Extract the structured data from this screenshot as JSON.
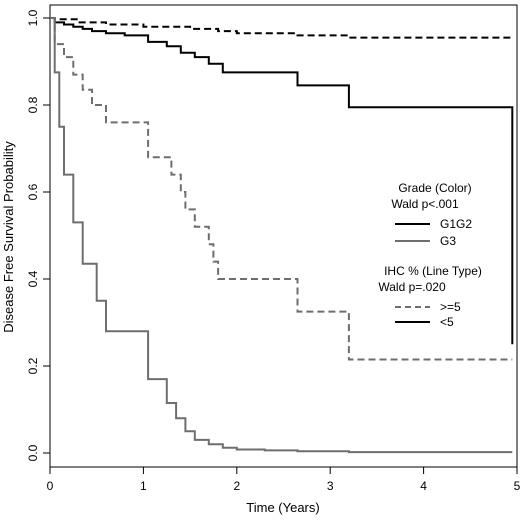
{
  "chart_data": {
    "type": "line",
    "xlabel": "Time (Years)",
    "ylabel": "Disease Free Survival Probability",
    "xlim": [
      0,
      5
    ],
    "ylim": [
      0,
      1
    ],
    "x_ticks": [
      "0",
      "1",
      "2",
      "3",
      "4",
      "5"
    ],
    "y_ticks": [
      "0.0",
      "0.2",
      "0.4",
      "0.6",
      "0.8",
      "1.0"
    ],
    "grid": false,
    "legend_placement": "right",
    "legend": {
      "grade_title": "Grade (Color)",
      "grade_p": "Wald p<.001",
      "grade_items": [
        {
          "label": "G1G2",
          "color": "#000000"
        },
        {
          "label": "G3",
          "color": "#6e6e6e"
        }
      ],
      "ihc_title": "IHC % (Line Type)",
      "ihc_p": "Wald p=.020",
      "ihc_items": [
        {
          "label": ">=5",
          "dash": true
        },
        {
          "label": "<5",
          "dash": false
        }
      ]
    },
    "series": [
      {
        "color": "#000000",
        "dash": true,
        "x": [
          0,
          0.05,
          0.3,
          0.6,
          1.0,
          1.5,
          1.8,
          2.0,
          2.65,
          3.2,
          4.95
        ],
        "y": [
          1.0,
          0.997,
          0.99,
          0.985,
          0.98,
          0.975,
          0.97,
          0.965,
          0.96,
          0.955,
          0.955
        ]
      },
      {
        "color": "#000000",
        "dash": false,
        "x": [
          0,
          0.05,
          0.15,
          0.25,
          0.35,
          0.45,
          0.6,
          0.8,
          1.05,
          1.25,
          1.4,
          1.55,
          1.7,
          1.85,
          2.65,
          3.2,
          4.95,
          4.95
        ],
        "y": [
          1.0,
          0.99,
          0.985,
          0.98,
          0.975,
          0.97,
          0.965,
          0.96,
          0.945,
          0.935,
          0.92,
          0.91,
          0.895,
          0.875,
          0.845,
          0.795,
          0.795,
          0.25
        ]
      },
      {
        "color": "#6e6e6e",
        "dash": true,
        "x": [
          0,
          0.05,
          0.15,
          0.25,
          0.35,
          0.45,
          0.6,
          1.05,
          1.3,
          1.4,
          1.45,
          1.55,
          1.7,
          1.75,
          1.8,
          2.65,
          3.2,
          4.95
        ],
        "y": [
          1.0,
          0.94,
          0.91,
          0.87,
          0.835,
          0.8,
          0.76,
          0.68,
          0.64,
          0.6,
          0.56,
          0.52,
          0.48,
          0.44,
          0.4,
          0.325,
          0.215,
          0.215
        ]
      },
      {
        "color": "#6e6e6e",
        "dash": false,
        "x": [
          0,
          0.05,
          0.1,
          0.15,
          0.25,
          0.35,
          0.5,
          0.6,
          1.05,
          1.25,
          1.35,
          1.45,
          1.55,
          1.7,
          1.85,
          2.0,
          2.3,
          2.65,
          3.2,
          4.95
        ],
        "y": [
          1.0,
          0.875,
          0.75,
          0.64,
          0.53,
          0.435,
          0.35,
          0.28,
          0.17,
          0.115,
          0.08,
          0.05,
          0.03,
          0.02,
          0.012,
          0.008,
          0.006,
          0.004,
          0.002,
          0.002
        ]
      }
    ]
  }
}
